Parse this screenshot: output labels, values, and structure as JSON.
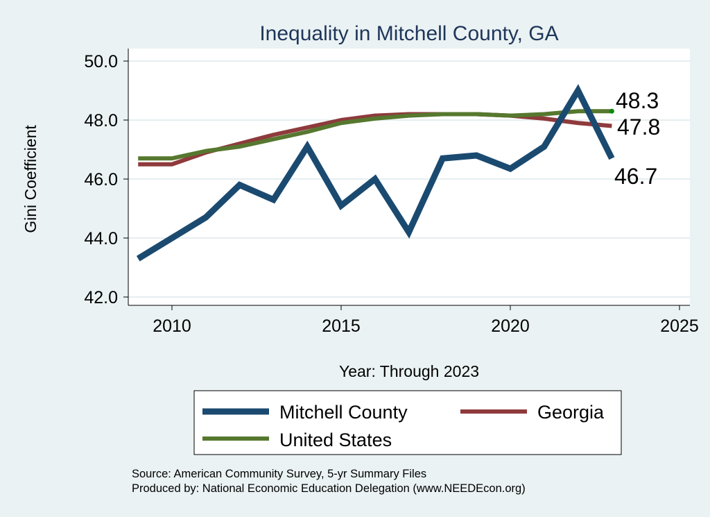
{
  "chart_data": {
    "type": "line",
    "title": "Inequality in Mitchell County, GA",
    "xlabel": "Year: Through 2023",
    "ylabel": "Gini Coefficient",
    "xlim": [
      2008.5,
      2025.3
    ],
    "ylim": [
      41.8,
      50.4
    ],
    "xticks": [
      2010,
      2015,
      2020,
      2025
    ],
    "xtick_labels": [
      "2010",
      "2015",
      "2020",
      "2025"
    ],
    "yticks": [
      42,
      44,
      46,
      48,
      50
    ],
    "ytick_labels": [
      "42.0",
      "44.0",
      "46.0",
      "48.0",
      "50.0"
    ],
    "grid": true,
    "x": [
      2009,
      2010,
      2011,
      2012,
      2013,
      2014,
      2015,
      2016,
      2017,
      2018,
      2019,
      2020,
      2021,
      2022,
      2023
    ],
    "series": [
      {
        "name": "Mitchell County",
        "color": "#1b4a70",
        "width": 9,
        "values": [
          43.3,
          44.0,
          44.7,
          45.8,
          45.3,
          47.1,
          45.1,
          46.0,
          44.2,
          46.7,
          46.8,
          46.35,
          47.1,
          49.0,
          46.7
        ],
        "end_label": "46.7"
      },
      {
        "name": "Georgia",
        "color": "#8f3a3c",
        "width": 6,
        "values": [
          46.5,
          46.5,
          46.9,
          47.2,
          47.5,
          47.75,
          48.0,
          48.15,
          48.2,
          48.2,
          48.2,
          48.15,
          48.05,
          47.9,
          47.8
        ],
        "end_label": "47.8"
      },
      {
        "name": "United States",
        "color": "#56782f",
        "width": 6,
        "values": [
          46.7,
          46.7,
          46.95,
          47.1,
          47.35,
          47.6,
          47.9,
          48.05,
          48.15,
          48.2,
          48.2,
          48.15,
          48.2,
          48.3,
          48.3
        ],
        "end_label": "48.3"
      }
    ],
    "legend": {
      "placement": "bottom",
      "entries": [
        "Mitchell County",
        "Georgia",
        "United States"
      ]
    }
  },
  "notes": {
    "source": "Source: American Community Survey, 5-yr Summary Files",
    "produced": "Produced by: National Economic Education Delegation (www.NEEDEcon.org)"
  }
}
